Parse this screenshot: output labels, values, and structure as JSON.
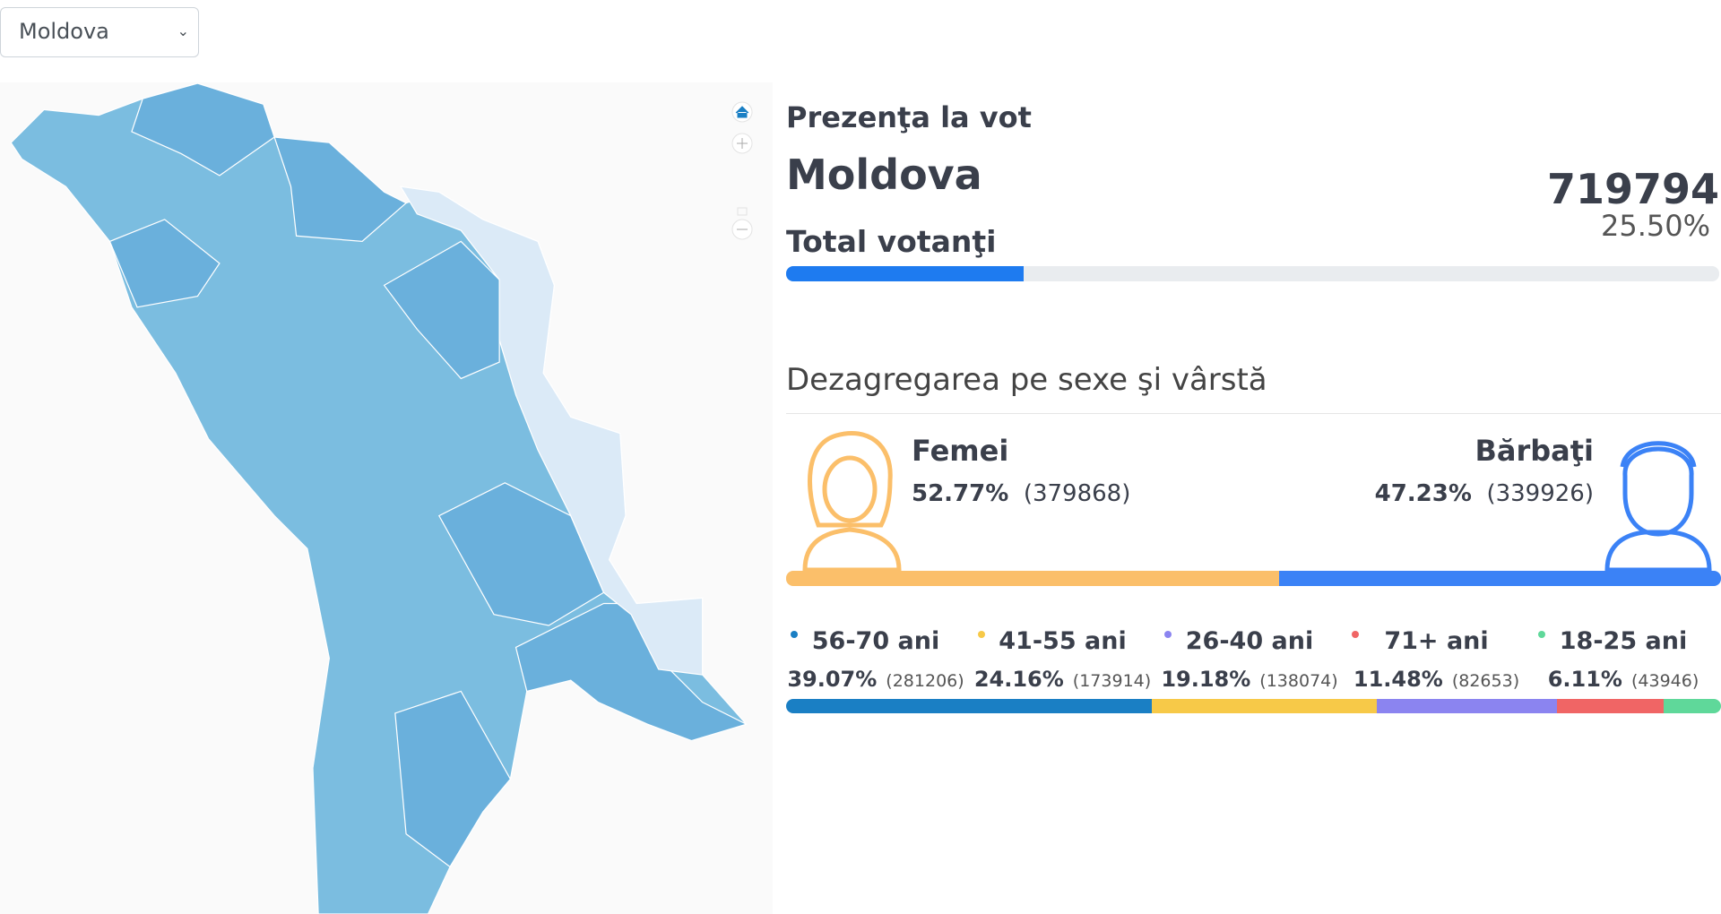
{
  "selector": {
    "selected": "Moldova"
  },
  "turnout": {
    "title": "Prezenţa la vot",
    "region": "Moldova",
    "total_label": "Total votanţi",
    "total": 719794,
    "share": {
      "value": 25.5,
      "label": "25.50%"
    },
    "color": "#1e7bf0"
  },
  "breakdown": {
    "title": "Dezagregarea pe sexe şi vârstă",
    "gender": [
      {
        "name": "Femei",
        "share": {
          "value": 52.77,
          "label": "52.77%"
        },
        "count_label": "(379868)",
        "color": "#fbbf6a"
      },
      {
        "name": "Bărbaţi",
        "share": {
          "value": 47.23,
          "label": "47.23%"
        },
        "count_label": "(339926)",
        "color": "#3b82f6"
      }
    ],
    "age": [
      {
        "name": "56-70 ani",
        "share": {
          "value": 39.07,
          "label": "39.07%"
        },
        "count_label": "(281206)",
        "color": "#1a7fc4"
      },
      {
        "name": "41-55 ani",
        "share": {
          "value": 24.16,
          "label": "24.16%"
        },
        "count_label": "(173914)",
        "color": "#f7c948"
      },
      {
        "name": "26-40 ani",
        "share": {
          "value": 19.18,
          "label": "19.18%"
        },
        "count_label": "(138074)",
        "color": "#8b84f0"
      },
      {
        "name": "71+ ani",
        "share": {
          "value": 11.48,
          "label": "11.48%"
        },
        "count_label": "(82653)",
        "color": "#f06565"
      },
      {
        "name": "18-25 ani",
        "share": {
          "value": 6.11,
          "label": "6.11%"
        },
        "count_label": "(43946)",
        "color": "#5fd89a"
      }
    ]
  }
}
